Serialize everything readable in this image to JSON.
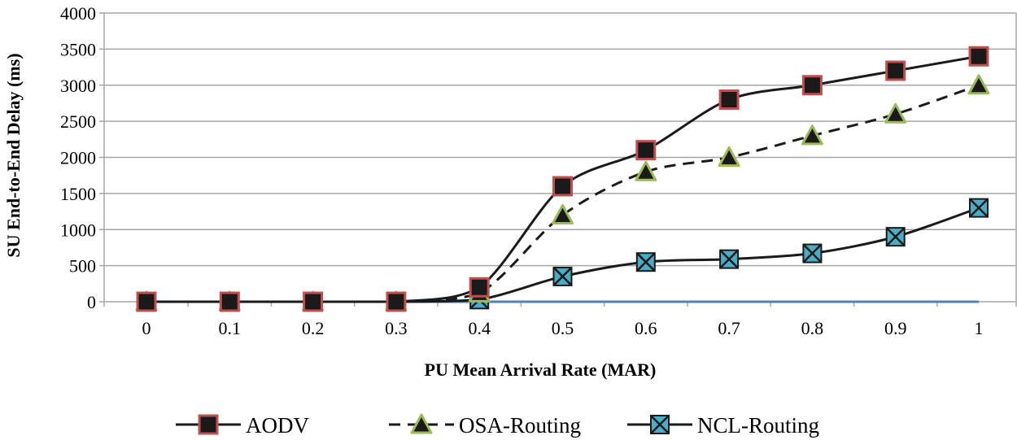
{
  "chart_data": {
    "type": "line",
    "title": "",
    "xlabel": "PU Mean Arrival Rate (MAR)",
    "ylabel": "SU End-to-End Delay (ms)",
    "x": [
      0,
      0.1,
      0.2,
      0.3,
      0.4,
      0.5,
      0.6,
      0.7,
      0.8,
      0.9,
      1
    ],
    "x_tick_labels": [
      "0",
      "0.1",
      "0.2",
      "0.3",
      "0.4",
      "0.5",
      "0.6",
      "0.7",
      "0.8",
      "0.9",
      "1"
    ],
    "ylim": [
      0,
      4000
    ],
    "y_ticks": [
      0,
      500,
      1000,
      1500,
      2000,
      2500,
      3000,
      3500,
      4000
    ],
    "y_tick_labels": [
      "0",
      "500",
      "1000",
      "1500",
      "2000",
      "2500",
      "3000",
      "3500",
      "4000"
    ],
    "grid": true,
    "legend_position": "bottom",
    "series": [
      {
        "name": "AODV",
        "values": [
          0,
          0,
          0,
          0,
          200,
          1600,
          2100,
          2800,
          3000,
          3200,
          3400
        ],
        "line_style": "solid",
        "marker": "square",
        "marker_fill": "#1a1a1a",
        "marker_edge": "#c0504d",
        "line_color": "#1a1a1a"
      },
      {
        "name": "OSA-Routing",
        "values": [
          0,
          0,
          0,
          0,
          120,
          1200,
          1800,
          2000,
          2300,
          2600,
          3000
        ],
        "line_style": "dashed",
        "marker": "triangle",
        "marker_fill": "#1a1a1a",
        "marker_edge": "#9bbb59",
        "line_color": "#1a1a1a"
      },
      {
        "name": "NCL-Routing",
        "values": [
          0,
          0,
          0,
          0,
          30,
          350,
          550,
          590,
          670,
          900,
          1300
        ],
        "line_style": "solid",
        "marker": "x-square",
        "marker_fill": "#4bacc6",
        "marker_edge": "#1a1a1a",
        "line_color": "#1a1a1a"
      }
    ],
    "baseline": {
      "values": [
        0,
        0,
        0,
        0,
        0,
        0,
        0,
        0,
        0,
        0,
        0
      ],
      "color": "#4f81bd",
      "x_from": 0.3,
      "x_to": 1
    }
  }
}
